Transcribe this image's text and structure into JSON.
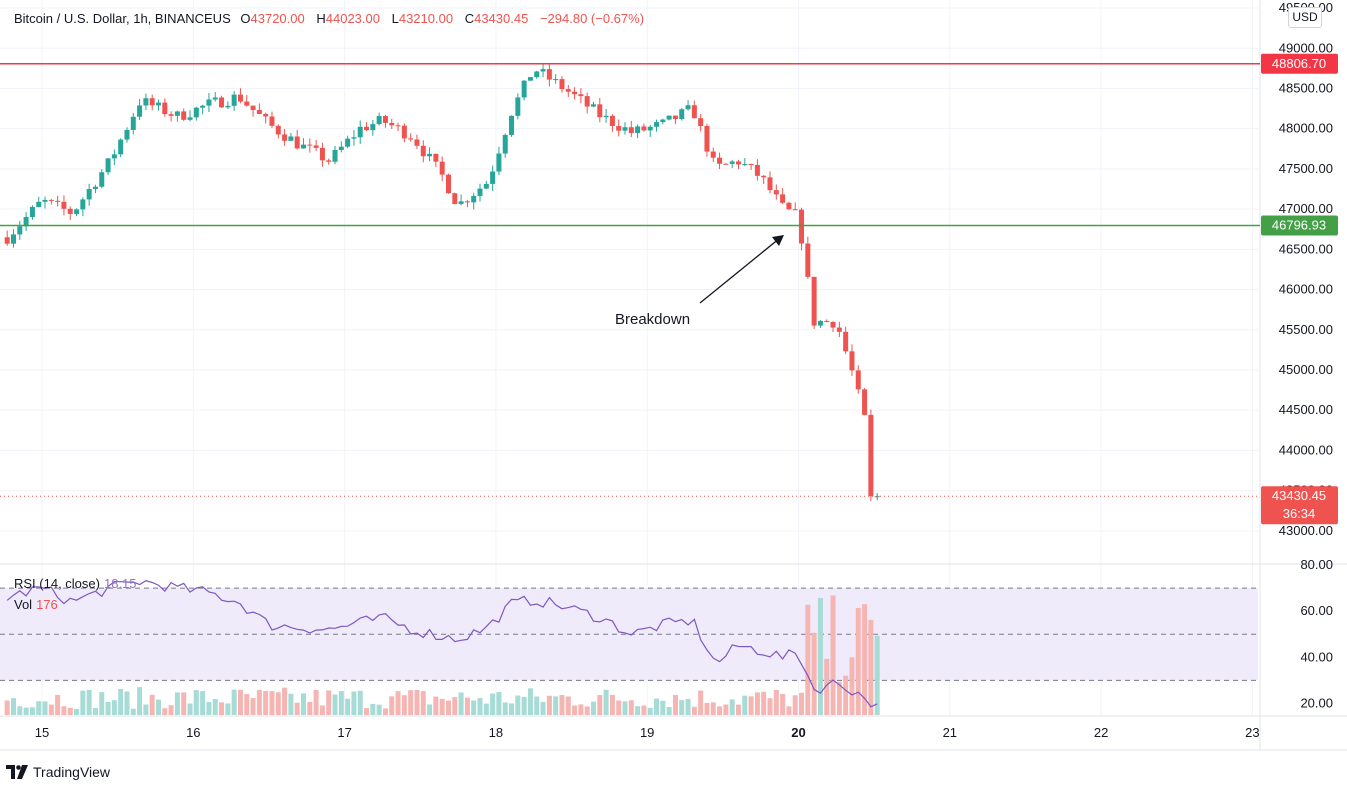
{
  "header": {
    "symbol": "Bitcoin / U.S. Dollar, 1h, BINANCEUS",
    "open_label": "O",
    "open": "43720.00",
    "high_label": "H",
    "high": "44023.00",
    "low_label": "L",
    "low": "43210.00",
    "close_label": "C",
    "close": "43430.45",
    "change": "−294.80 (−0.67%)"
  },
  "currency_button": "USD",
  "rsi": {
    "label": "RSI (14, close)",
    "value": "18.15"
  },
  "volume": {
    "label": "Vol",
    "value": "176"
  },
  "annotation": {
    "text": "Breakdown"
  },
  "levels": {
    "resistance": {
      "value": "48806.70",
      "color": "#f23645"
    },
    "support": {
      "value": "46796.93",
      "color": "#43a047"
    },
    "last": {
      "value": "43430.45",
      "countdown": "36:34",
      "color": "#ef5350"
    }
  },
  "brand": "TradingView",
  "colors": {
    "up": "#26a69a",
    "down": "#ef5350",
    "rsi_line": "#7e57c2",
    "rsi_band": "#f0ebfa"
  },
  "chart_data": {
    "type": "candlestick",
    "price_ticks": [
      "43000.00",
      "43500.00",
      "44000.00",
      "44500.00",
      "45000.00",
      "45500.00",
      "46000.00",
      "46500.00",
      "47000.00",
      "47500.00",
      "48000.00",
      "48500.00",
      "49000.00",
      "49500.00"
    ],
    "rsi_ticks": [
      "20.00",
      "40.00",
      "60.00",
      "80.00"
    ],
    "rsi_levels": [
      70,
      50,
      30
    ],
    "x_ticks": [
      "15",
      "16",
      "17",
      "18",
      "19",
      "20",
      "21",
      "22",
      "23"
    ],
    "ylim": [
      42600,
      49600
    ],
    "rsi_ylim": [
      15,
      80
    ],
    "close_anchors": [
      {
        "day": 14.77,
        "price": 46650
      },
      {
        "day": 15.0,
        "price": 47100
      },
      {
        "day": 15.2,
        "price": 46950
      },
      {
        "day": 15.45,
        "price": 47600
      },
      {
        "day": 15.65,
        "price": 48350
      },
      {
        "day": 15.9,
        "price": 48150
      },
      {
        "day": 16.1,
        "price": 48300
      },
      {
        "day": 16.3,
        "price": 48400
      },
      {
        "day": 16.5,
        "price": 48050
      },
      {
        "day": 16.7,
        "price": 47800
      },
      {
        "day": 16.9,
        "price": 47600
      },
      {
        "day": 17.1,
        "price": 48000
      },
      {
        "day": 17.25,
        "price": 48100
      },
      {
        "day": 17.45,
        "price": 47900
      },
      {
        "day": 17.65,
        "price": 47400
      },
      {
        "day": 17.75,
        "price": 47050
      },
      {
        "day": 17.95,
        "price": 47350
      },
      {
        "day": 18.1,
        "price": 48200
      },
      {
        "day": 18.25,
        "price": 48750
      },
      {
        "day": 18.45,
        "price": 48500
      },
      {
        "day": 18.7,
        "price": 48150
      },
      {
        "day": 18.9,
        "price": 47950
      },
      {
        "day": 19.1,
        "price": 48050
      },
      {
        "day": 19.3,
        "price": 48250
      },
      {
        "day": 19.45,
        "price": 47500
      },
      {
        "day": 19.6,
        "price": 47600
      },
      {
        "day": 19.75,
        "price": 47400
      },
      {
        "day": 19.9,
        "price": 47000
      },
      {
        "day": 20.0,
        "price": 46900
      },
      {
        "day": 20.1,
        "price": 45600
      },
      {
        "day": 20.25,
        "price": 45600
      },
      {
        "day": 20.35,
        "price": 45000
      },
      {
        "day": 20.45,
        "price": 44300
      },
      {
        "day": 20.52,
        "price": 43430
      }
    ],
    "rsi_anchors": [
      {
        "day": 14.77,
        "value": 66
      },
      {
        "day": 15.0,
        "value": 70
      },
      {
        "day": 15.2,
        "value": 64
      },
      {
        "day": 15.45,
        "value": 70
      },
      {
        "day": 15.65,
        "value": 73
      },
      {
        "day": 15.9,
        "value": 70
      },
      {
        "day": 16.1,
        "value": 68
      },
      {
        "day": 16.3,
        "value": 64
      },
      {
        "day": 16.5,
        "value": 54
      },
      {
        "day": 16.7,
        "value": 53
      },
      {
        "day": 16.9,
        "value": 52
      },
      {
        "day": 17.1,
        "value": 55
      },
      {
        "day": 17.25,
        "value": 57
      },
      {
        "day": 17.45,
        "value": 52
      },
      {
        "day": 17.65,
        "value": 49
      },
      {
        "day": 17.75,
        "value": 48
      },
      {
        "day": 17.95,
        "value": 53
      },
      {
        "day": 18.1,
        "value": 63
      },
      {
        "day": 18.25,
        "value": 65
      },
      {
        "day": 18.45,
        "value": 62
      },
      {
        "day": 18.7,
        "value": 57
      },
      {
        "day": 18.9,
        "value": 50
      },
      {
        "day": 19.1,
        "value": 54
      },
      {
        "day": 19.3,
        "value": 56
      },
      {
        "day": 19.45,
        "value": 37
      },
      {
        "day": 19.6,
        "value": 45
      },
      {
        "day": 19.75,
        "value": 43
      },
      {
        "day": 19.9,
        "value": 40
      },
      {
        "day": 20.0,
        "value": 42
      },
      {
        "day": 20.1,
        "value": 26
      },
      {
        "day": 20.25,
        "value": 29
      },
      {
        "day": 20.35,
        "value": 26
      },
      {
        "day": 20.45,
        "value": 22
      },
      {
        "day": 20.52,
        "value": 18.15
      }
    ]
  }
}
